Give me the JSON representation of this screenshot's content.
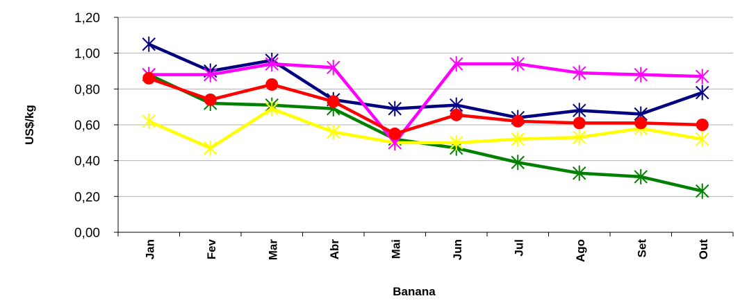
{
  "chart_data": {
    "type": "line",
    "xlabel": "Banana",
    "ylabel": "US$/kg",
    "categories": [
      "Jan",
      "Fev",
      "Mar",
      "Abr",
      "Mai",
      "Jun",
      "Jul",
      "Ago",
      "Set",
      "Out"
    ],
    "series": [
      {
        "color": "#008000",
        "marker": "asterisk",
        "values": [
          0.88,
          0.72,
          0.71,
          0.69,
          0.52,
          0.47,
          0.39,
          0.33,
          0.31,
          0.23
        ]
      },
      {
        "color": "#ffff00",
        "marker": "asterisk",
        "values": [
          0.62,
          0.47,
          0.69,
          0.56,
          0.5,
          0.5,
          0.52,
          0.53,
          0.58,
          0.52
        ]
      },
      {
        "color": "#000080",
        "marker": "star",
        "values": [
          1.05,
          0.9,
          0.96,
          0.74,
          0.69,
          0.71,
          0.64,
          0.68,
          0.66,
          0.78
        ]
      },
      {
        "color": "#ff00ff",
        "marker": "asterisk",
        "values": [
          0.88,
          0.88,
          0.94,
          0.92,
          0.5,
          0.94,
          0.94,
          0.89,
          0.88,
          0.87
        ]
      },
      {
        "color": "#ff0000",
        "marker": "circle",
        "values": [
          0.86,
          0.74,
          0.825,
          0.73,
          0.55,
          0.655,
          0.62,
          0.61,
          0.61,
          0.6
        ]
      }
    ],
    "ylim": [
      0,
      1.2
    ],
    "yticks": [
      {
        "value": 0,
        "label": "0,00"
      },
      {
        "value": 0.2,
        "label": "0,20"
      },
      {
        "value": 0.4,
        "label": "0,40"
      },
      {
        "value": 0.6,
        "label": "0,60"
      },
      {
        "value": 0.8,
        "label": "0,80"
      },
      {
        "value": 1.0,
        "label": "1,00"
      },
      {
        "value": 1.2,
        "label": "1,20"
      }
    ],
    "grid": true
  }
}
